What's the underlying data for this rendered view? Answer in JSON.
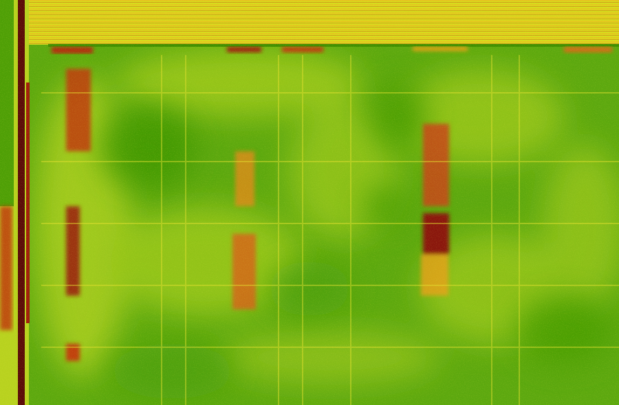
{
  "image": {
    "kind": "false-color vegetation index aerial map of a crop field",
    "palette": {
      "dense_vegetation": "#3f9a00",
      "moderate_vegetation": "#8cc21a",
      "low_vegetation": "#e6e21a",
      "sparse": "#f0a018",
      "bare": "#b01e10",
      "very_bare": "#5a0a08"
    }
  }
}
